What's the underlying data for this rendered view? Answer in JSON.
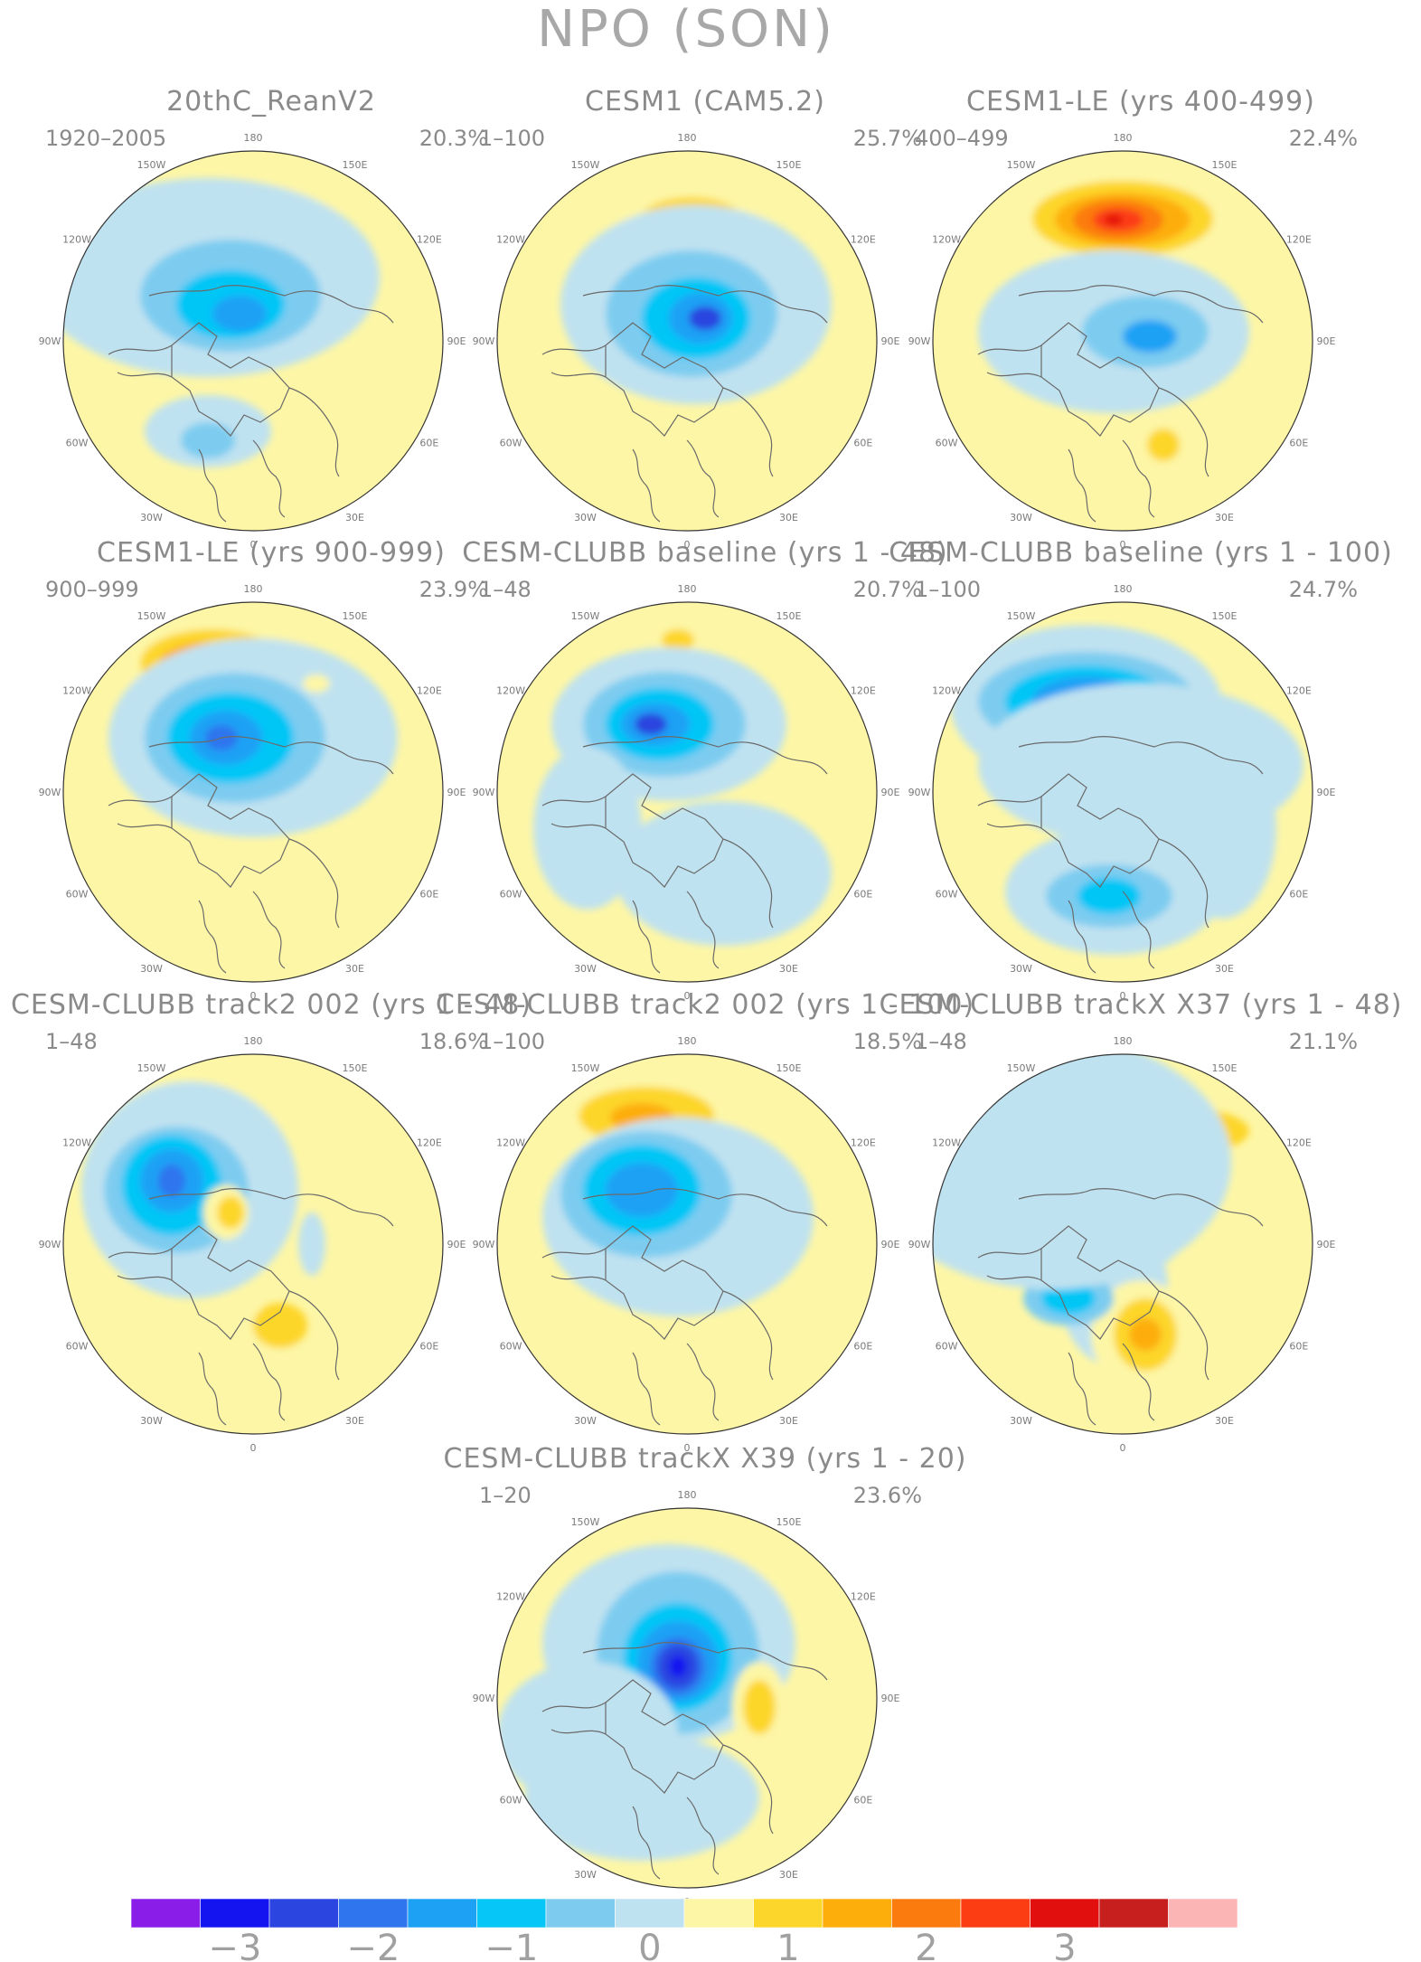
{
  "title": "NPO (SON)",
  "colors": {
    "scale": [
      "#8a1de8",
      "#1414f0",
      "#2b45e0",
      "#2f75ee",
      "#1ca1f5",
      "#05c6f6",
      "#7dccf0",
      "#bfe2f0",
      "#fdf6a6",
      "#fdd62b",
      "#fdae0a",
      "#fc7b0f",
      "#fc3c12",
      "#e20f0f",
      "#c71e1e",
      "#fcb5b5"
    ],
    "ocean": "#fdf6a6",
    "coast": "#6a6a6a"
  },
  "colorbar": {
    "ticks": [
      "−3",
      "−2",
      "−1",
      "0",
      "1",
      "2",
      "3"
    ]
  },
  "lon_labels": [
    "180",
    "150E",
    "120E",
    "90E",
    "60E",
    "30E",
    "0",
    "30W",
    "60W",
    "90W",
    "120W",
    "150W"
  ],
  "panels": [
    {
      "title": "20thC_ReanV2",
      "years": "1920–2005",
      "pct": "20.3%"
    },
    {
      "title": "CESM1 (CAM5.2)",
      "years": "1–100",
      "pct": "25.7%"
    },
    {
      "title": "CESM1-LE (yrs 400-499)",
      "years": "400–499",
      "pct": "22.4%"
    },
    {
      "title": "CESM1-LE (yrs 900-999)",
      "years": "900–999",
      "pct": "23.9%"
    },
    {
      "title": "CESM-CLUBB baseline (yrs 1 - 48)",
      "years": "1–48",
      "pct": "20.7%"
    },
    {
      "title": "CESM-CLUBB baseline (yrs 1 - 100)",
      "years": "1–100",
      "pct": "24.7%"
    },
    {
      "title": "CESM-CLUBB track2 002 (yrs 1 - 48)",
      "years": "1–48",
      "pct": "18.6%"
    },
    {
      "title": "CESM-CLUBB track2 002 (yrs 1 - 100)",
      "years": "1–100",
      "pct": "18.5%"
    },
    {
      "title": "CESM-CLUBB trackX X37 (yrs 1 - 48)",
      "years": "1–48",
      "pct": "21.1%"
    },
    {
      "title": "CESM-CLUBB trackX X39 (yrs 1 - 20)",
      "years": "1–20",
      "pct": "23.6%"
    }
  ]
}
